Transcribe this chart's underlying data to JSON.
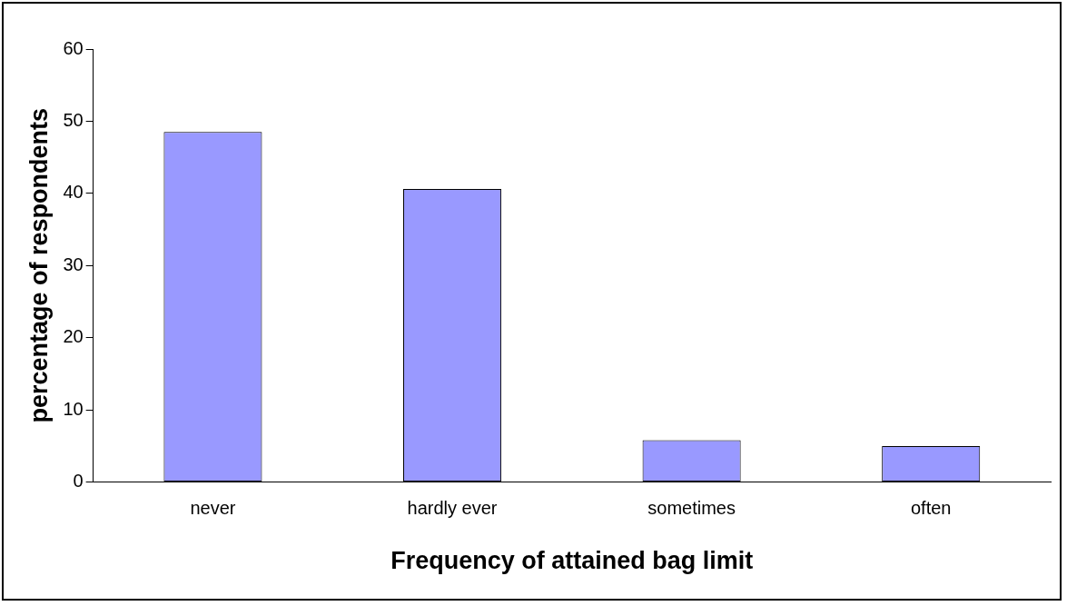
{
  "chart_data": {
    "type": "bar",
    "xlabel": "Frequency of attained bag limit",
    "ylabel": "percentage of respondents",
    "categories": [
      "never",
      "hardly ever",
      "sometimes",
      "often"
    ],
    "values": [
      48.5,
      40.6,
      5.8,
      5.0
    ],
    "color": "#9999ff",
    "ylim": [
      0,
      60
    ],
    "yticks": [
      0,
      10,
      20,
      30,
      40,
      50,
      60
    ],
    "grid": false,
    "legend": false
  }
}
